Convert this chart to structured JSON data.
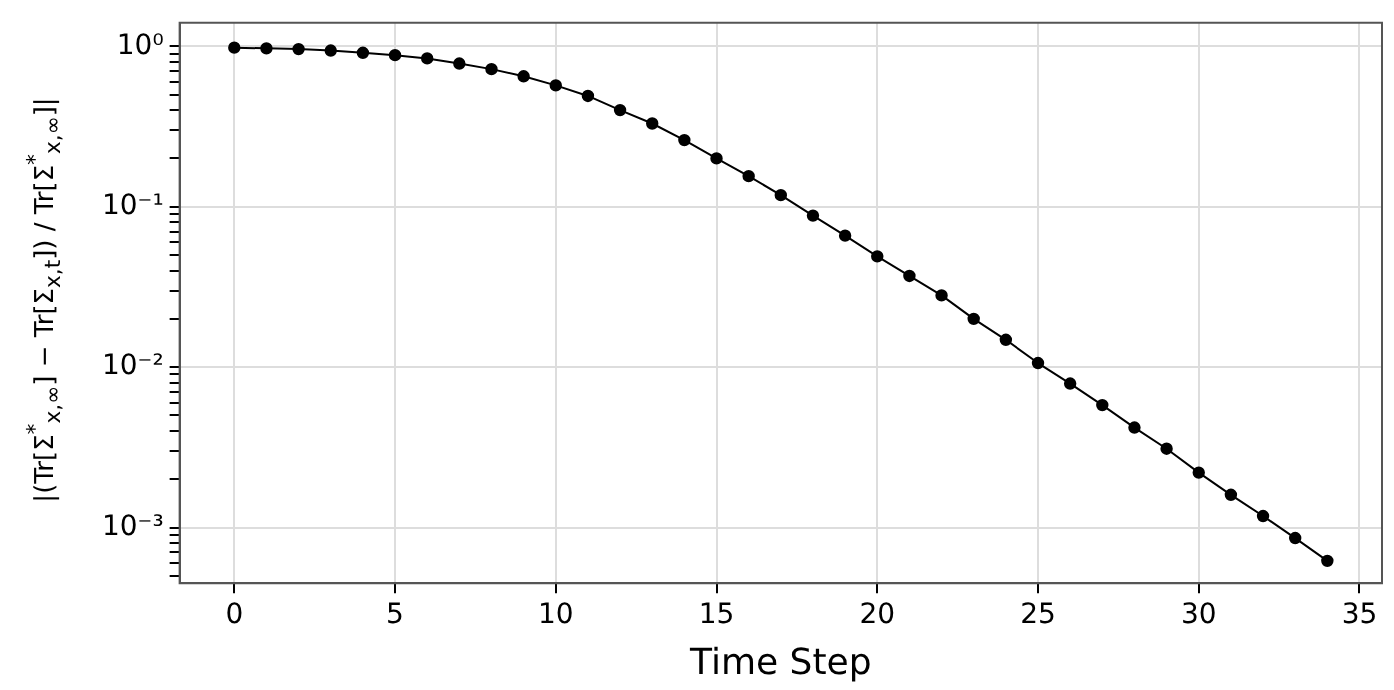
{
  "chart_data": {
    "type": "line",
    "xlabel": "Time Step",
    "ylabel": "|(Tr[Σ$^{*}$$_{x,∞}$] − Tr[Σ$_{x,t}$]) / Tr[Σ$^{*}$$_{x,∞}$]|",
    "x": [
      0,
      1,
      2,
      3,
      4,
      5,
      6,
      7,
      8,
      9,
      10,
      11,
      12,
      13,
      14,
      15,
      16,
      17,
      18,
      19,
      20,
      21,
      22,
      23,
      24,
      25,
      26,
      27,
      28,
      29,
      30,
      31,
      32,
      33,
      34
    ],
    "series": [
      {
        "color": "#000000",
        "values": [
          0.98,
          0.97,
          0.96,
          0.94,
          0.91,
          0.88,
          0.84,
          0.78,
          0.72,
          0.65,
          0.57,
          0.49,
          0.4,
          0.33,
          0.26,
          0.2,
          0.155,
          0.118,
          0.088,
          0.066,
          0.049,
          0.037,
          0.028,
          0.02,
          0.0148,
          0.0106,
          0.0079,
          0.0058,
          0.0042,
          0.0031,
          0.0022,
          0.0016,
          0.00118,
          0.00086,
          0.00062
        ]
      }
    ],
    "log": "y",
    "grid": true,
    "marker": "circle",
    "line_style": "solid",
    "legend": false,
    "xlim": [
      -1.7,
      35.7
    ],
    "xticks": [
      0,
      5,
      10,
      15,
      20,
      25,
      30,
      35
    ],
    "ylim": [
      0.00045,
      1.4
    ],
    "yticks": [
      {
        "value": 0.0005,
        "label": null
      },
      {
        "value": 0.0006,
        "label": null
      },
      {
        "value": 0.0007,
        "label": null
      },
      {
        "value": 0.0008,
        "label": null
      },
      {
        "value": 0.0009,
        "label": null
      },
      {
        "value": 0.001,
        "label": "10⁻³"
      },
      {
        "value": 0.002,
        "label": null
      },
      {
        "value": 0.003,
        "label": null
      },
      {
        "value": 0.004,
        "label": null
      },
      {
        "value": 0.005,
        "label": null
      },
      {
        "value": 0.006,
        "label": null
      },
      {
        "value": 0.007,
        "label": null
      },
      {
        "value": 0.008,
        "label": null
      },
      {
        "value": 0.009,
        "label": null
      },
      {
        "value": 0.01,
        "label": "10⁻²"
      },
      {
        "value": 0.02,
        "label": null
      },
      {
        "value": 0.03,
        "label": null
      },
      {
        "value": 0.04,
        "label": null
      },
      {
        "value": 0.05,
        "label": null
      },
      {
        "value": 0.06,
        "label": null
      },
      {
        "value": 0.07,
        "label": null
      },
      {
        "value": 0.08,
        "label": null
      },
      {
        "value": 0.09,
        "label": null
      },
      {
        "value": 0.1,
        "label": "10⁻¹"
      },
      {
        "value": 0.2,
        "label": null
      },
      {
        "value": 0.3,
        "label": null
      },
      {
        "value": 0.4,
        "label": null
      },
      {
        "value": 0.5,
        "label": null
      },
      {
        "value": 0.6,
        "label": null
      },
      {
        "value": 0.7,
        "label": null
      },
      {
        "value": 0.8,
        "label": null
      },
      {
        "value": 0.9,
        "label": null
      },
      {
        "value": 1,
        "label": "10⁰"
      }
    ]
  }
}
